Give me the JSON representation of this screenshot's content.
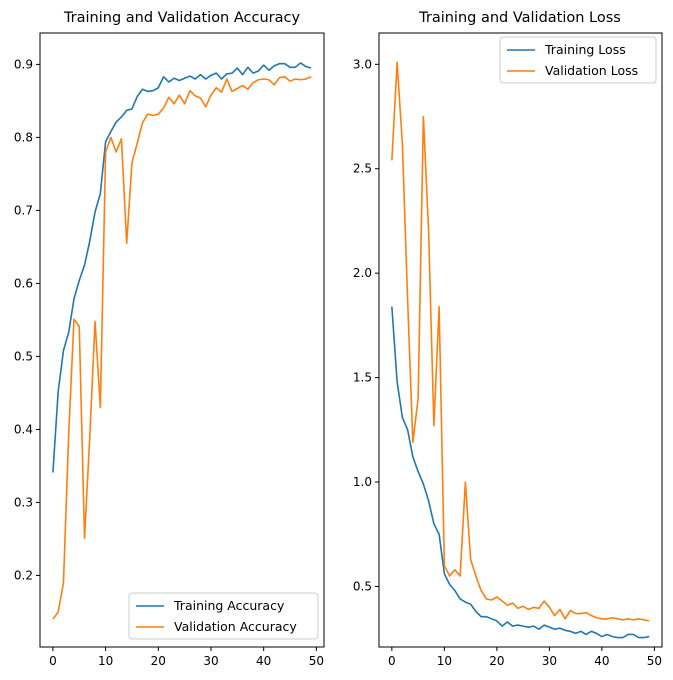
{
  "chart_data": [
    {
      "type": "line",
      "title": "Training and Validation Accuracy",
      "xlabel": "",
      "ylabel": "",
      "xlim": [
        -2.45,
        51.45
      ],
      "ylim": [
        0.102,
        0.943
      ],
      "xticks": [
        0,
        10,
        20,
        30,
        40,
        50
      ],
      "yticks": [
        0.2,
        0.3,
        0.4,
        0.5,
        0.6,
        0.7,
        0.8,
        0.9
      ],
      "ytick_labels": [
        "0.2",
        "0.3",
        "0.4",
        "0.5",
        "0.6",
        "0.7",
        "0.8",
        "0.9"
      ],
      "grid": false,
      "legend_position": "lower-right",
      "x": [
        0,
        1,
        2,
        3,
        4,
        5,
        6,
        7,
        8,
        9,
        10,
        11,
        12,
        13,
        14,
        15,
        16,
        17,
        18,
        19,
        20,
        21,
        22,
        23,
        24,
        25,
        26,
        27,
        28,
        29,
        30,
        31,
        32,
        33,
        34,
        35,
        36,
        37,
        38,
        39,
        40,
        41,
        42,
        43,
        44,
        45,
        46,
        47,
        48,
        49
      ],
      "series": [
        {
          "name": "Training Accuracy",
          "color": "#1f77b4",
          "values": [
            0.341,
            0.452,
            0.508,
            0.533,
            0.579,
            0.604,
            0.625,
            0.658,
            0.698,
            0.723,
            0.794,
            0.808,
            0.821,
            0.828,
            0.837,
            0.839,
            0.856,
            0.866,
            0.863,
            0.864,
            0.868,
            0.883,
            0.876,
            0.881,
            0.878,
            0.881,
            0.884,
            0.88,
            0.886,
            0.88,
            0.885,
            0.888,
            0.88,
            0.887,
            0.888,
            0.895,
            0.886,
            0.896,
            0.888,
            0.891,
            0.899,
            0.892,
            0.898,
            0.901,
            0.901,
            0.896,
            0.896,
            0.902,
            0.897,
            0.895
          ]
        },
        {
          "name": "Validation Accuracy",
          "color": "#ff7f0e",
          "values": [
            0.14,
            0.15,
            0.19,
            0.395,
            0.551,
            0.541,
            0.251,
            0.39,
            0.548,
            0.43,
            0.78,
            0.8,
            0.78,
            0.798,
            0.655,
            0.765,
            0.792,
            0.82,
            0.832,
            0.83,
            0.832,
            0.84,
            0.855,
            0.846,
            0.858,
            0.846,
            0.864,
            0.857,
            0.854,
            0.842,
            0.858,
            0.868,
            0.862,
            0.88,
            0.863,
            0.867,
            0.871,
            0.866,
            0.875,
            0.879,
            0.88,
            0.879,
            0.872,
            0.882,
            0.883,
            0.877,
            0.88,
            0.879,
            0.88,
            0.883
          ]
        }
      ]
    },
    {
      "type": "line",
      "title": "Training and Validation Loss",
      "xlabel": "",
      "ylabel": "",
      "xlim": [
        -2.45,
        51.45
      ],
      "ylim": [
        0.21,
        3.15
      ],
      "xticks": [
        0,
        10,
        20,
        30,
        40,
        50
      ],
      "yticks": [
        0.5,
        1.0,
        1.5,
        2.0,
        2.5,
        3.0
      ],
      "ytick_labels": [
        "0.5",
        "1.0",
        "1.5",
        "2.0",
        "2.5",
        "3.0"
      ],
      "grid": false,
      "legend_position": "upper-right",
      "x": [
        0,
        1,
        2,
        3,
        4,
        5,
        6,
        7,
        8,
        9,
        10,
        11,
        12,
        13,
        14,
        15,
        16,
        17,
        18,
        19,
        20,
        21,
        22,
        23,
        24,
        25,
        26,
        27,
        28,
        29,
        30,
        31,
        32,
        33,
        34,
        35,
        36,
        37,
        38,
        39,
        40,
        41,
        42,
        43,
        44,
        45,
        46,
        47,
        48,
        49
      ],
      "series": [
        {
          "name": "Training Loss",
          "color": "#1f77b4",
          "values": [
            1.84,
            1.48,
            1.31,
            1.25,
            1.12,
            1.05,
            0.99,
            0.91,
            0.8,
            0.75,
            0.56,
            0.51,
            0.48,
            0.44,
            0.425,
            0.415,
            0.38,
            0.355,
            0.355,
            0.345,
            0.335,
            0.31,
            0.33,
            0.31,
            0.315,
            0.31,
            0.305,
            0.31,
            0.295,
            0.315,
            0.305,
            0.295,
            0.3,
            0.29,
            0.285,
            0.275,
            0.285,
            0.27,
            0.285,
            0.275,
            0.26,
            0.27,
            0.26,
            0.255,
            0.255,
            0.27,
            0.27,
            0.255,
            0.255,
            0.26
          ]
        },
        {
          "name": "Validation Loss",
          "color": "#ff7f0e",
          "values": [
            2.54,
            3.01,
            2.62,
            1.87,
            1.19,
            1.4,
            2.75,
            2.2,
            1.27,
            1.84,
            0.6,
            0.55,
            0.58,
            0.55,
            1.0,
            0.63,
            0.55,
            0.48,
            0.44,
            0.435,
            0.45,
            0.43,
            0.41,
            0.42,
            0.395,
            0.405,
            0.39,
            0.4,
            0.395,
            0.43,
            0.4,
            0.36,
            0.39,
            0.345,
            0.385,
            0.37,
            0.37,
            0.375,
            0.36,
            0.35,
            0.345,
            0.345,
            0.35,
            0.345,
            0.34,
            0.345,
            0.34,
            0.345,
            0.34,
            0.335
          ]
        }
      ]
    }
  ]
}
